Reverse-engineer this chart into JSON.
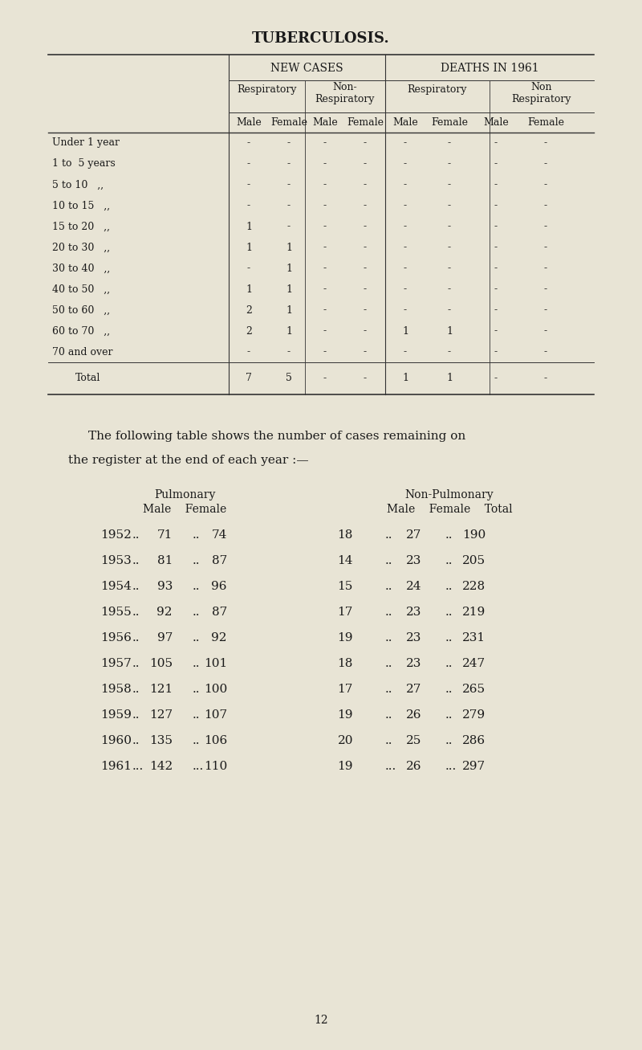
{
  "title": "TUBERCULOSIS.",
  "bg_color": "#e8e4d5",
  "text_color": "#1a1a1a",
  "page_number": "12",
  "table1": {
    "title_new_cases": "NEW CASES",
    "title_deaths": "DEATHS IN 1961",
    "col_headers": [
      "Respiratory",
      "Non-\nRespiratory",
      "Respiratory",
      "Non\nRespiratory"
    ],
    "sub_headers": [
      "Male",
      "Female",
      "Male",
      "Female",
      "Male",
      "Female",
      "Male",
      "Female"
    ],
    "row_labels": [
      "Under 1 year",
      "1 to  5 years",
      "5 to 10   „„",
      "10 to 15   „„",
      "15 to 20   „„",
      "20 to 30   „„",
      "30 to 40   „„",
      "40 to 50   „„",
      "50 to 60   „„",
      "60 to 70   „„",
      "70 and over"
    ],
    "data": [
      [
        "-",
        "-",
        "-",
        "-",
        "-",
        "-",
        "-",
        "-"
      ],
      [
        "-",
        "-",
        "-",
        "-",
        "-",
        "-",
        "-",
        "-"
      ],
      [
        "-",
        "-",
        "-",
        "-",
        "-",
        "-",
        "-",
        "-"
      ],
      [
        "-",
        "-",
        "-",
        "-",
        "-",
        "-",
        "-",
        "-"
      ],
      [
        "1",
        "-",
        "-",
        "-",
        "-",
        "-",
        "-",
        "-"
      ],
      [
        "1",
        "1",
        "-",
        "-",
        "-",
        "-",
        "-",
        "-"
      ],
      [
        "-",
        "1",
        "-",
        "-",
        "-",
        "-",
        "-",
        "-"
      ],
      [
        "1",
        "1",
        "-",
        "-",
        "-",
        "-",
        "-",
        "-"
      ],
      [
        "2",
        "1",
        "-",
        "-",
        "-",
        "-",
        "-",
        "-"
      ],
      [
        "2",
        "1",
        "-",
        "-",
        "1",
        "1",
        "-",
        "-"
      ],
      [
        "-",
        "-",
        "-",
        "-",
        "-",
        "-",
        "-",
        "-"
      ]
    ],
    "total_row": [
      "7",
      "5",
      "-",
      "-",
      "1",
      "1",
      "-",
      "-"
    ]
  },
  "paragraph": "The following table shows the number of cases remaining on\nthe register at the end of each year :—",
  "table2": {
    "headers": [
      "Pulmonary\nMale   Female",
      "Non-Pulmonary\nMale   Female   Total"
    ],
    "rows": [
      [
        "1952",
        ".. 71 .. 74",
        "18 .. 27 .. 190"
      ],
      [
        "1953",
        ".. 81 .. 87",
        "14 .. 23 .. 205"
      ],
      [
        "1954",
        ".. 93 .. 96",
        "15 .. 24 .. 228"
      ],
      [
        "1955",
        ".. 92 .. 87",
        "17 .. 23 .. 219"
      ],
      [
        "1956",
        ".. 97 .. 92",
        "19 .. 23 .. 231"
      ],
      [
        "1957",
        ".. 105 .. 101",
        "18 .. 23 .. 247"
      ],
      [
        "1958",
        ".. 121 .. 100",
        "17 .. 27 .. 265"
      ],
      [
        "1959",
        ".. 127 .. 107",
        "19 .. 26 .. 279"
      ],
      [
        "1960",
        ".. 135 .. 106",
        "20 .. 25 .. 286"
      ],
      [
        "1961",
        "... 142 ... 110",
        "19 ... 26 ... 297"
      ]
    ]
  },
  "table2_data": {
    "years": [
      1952,
      1953,
      1954,
      1955,
      1956,
      1957,
      1958,
      1959,
      1960,
      1961
    ],
    "pulm_male": [
      71,
      81,
      93,
      92,
      97,
      105,
      121,
      127,
      135,
      142
    ],
    "pulm_female": [
      74,
      87,
      96,
      87,
      92,
      101,
      100,
      107,
      106,
      110
    ],
    "non_male": [
      18,
      14,
      15,
      17,
      19,
      18,
      17,
      19,
      20,
      19
    ],
    "non_female": [
      27,
      23,
      24,
      23,
      23,
      23,
      27,
      26,
      25,
      26
    ],
    "total": [
      190,
      205,
      228,
      219,
      231,
      247,
      265,
      279,
      286,
      297
    ],
    "pulm_sep": [
      "..",
      "..",
      "..",
      "..",
      "..",
      "..",
      "..",
      "..",
      "..",
      "..."
    ],
    "non_sep": [
      "..",
      "..",
      "..",
      "..",
      "..",
      "..",
      "..",
      "..",
      "..",
      "..."
    ]
  }
}
